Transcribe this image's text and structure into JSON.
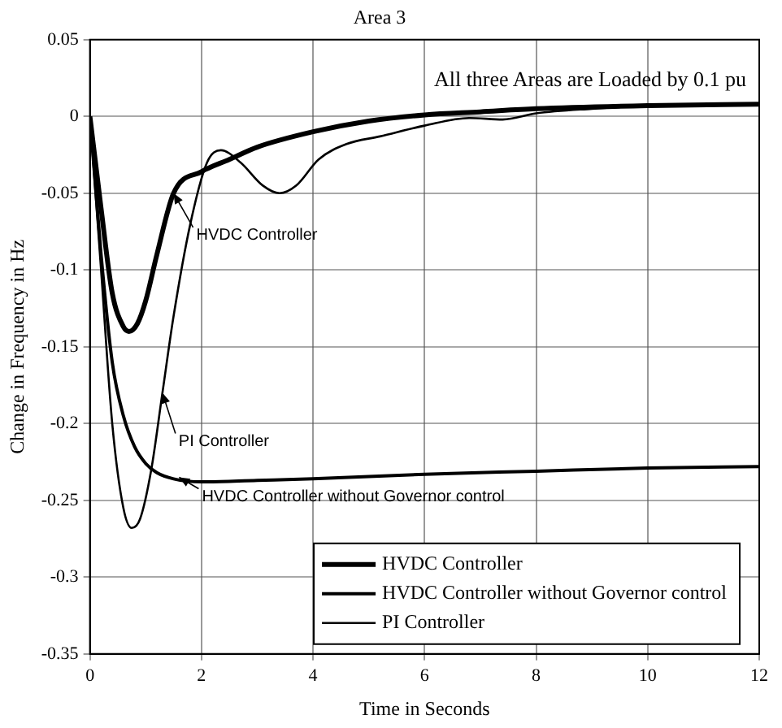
{
  "chart_data": {
    "type": "line",
    "title": "Area 3",
    "xlabel": "Time in Seconds",
    "ylabel": "Change in Frequency in Hz",
    "xlim": [
      0,
      12
    ],
    "xticks": [
      0,
      2,
      4,
      6,
      8,
      10,
      12
    ],
    "ylim": [
      -0.35,
      0.05
    ],
    "yticks": [
      0.05,
      0,
      -0.05,
      -0.1,
      -0.15,
      -0.2,
      -0.25,
      -0.3,
      -0.35
    ],
    "grid": true,
    "legend": "bottom right",
    "marker": "none",
    "line_style": "solid",
    "annotations": [
      "All three Areas are Loaded by 0.1 pu",
      {
        "text": "HVDC Controller",
        "x": 1.5,
        "y": -0.05
      },
      {
        "text": "PI Controller",
        "x": 1.3,
        "y": -0.18
      },
      {
        "text": "HVDC Controller without Governor control",
        "x": 1.6,
        "y": -0.235
      }
    ],
    "series": [
      {
        "name": "HVDC Controller",
        "color": "#000000",
        "x": [
          0,
          0.2,
          0.4,
          0.6,
          0.7,
          0.85,
          1.0,
          1.2,
          1.5,
          2,
          2.5,
          3,
          4,
          5,
          6,
          7,
          8,
          10,
          12
        ],
        "values": [
          0,
          -0.06,
          -0.115,
          -0.137,
          -0.14,
          -0.135,
          -0.12,
          -0.09,
          -0.05,
          -0.036,
          -0.028,
          -0.02,
          -0.01,
          -0.003,
          0.001,
          0.003,
          0.005,
          0.007,
          0.008
        ]
      },
      {
        "name": "HVDC Controller without Governor control",
        "color": "#000000",
        "x": [
          0,
          0.2,
          0.4,
          0.6,
          0.8,
          1.0,
          1.2,
          1.5,
          2,
          3,
          4,
          6,
          8,
          10,
          12
        ],
        "values": [
          0,
          -0.09,
          -0.16,
          -0.195,
          -0.215,
          -0.226,
          -0.232,
          -0.236,
          -0.238,
          -0.237,
          -0.236,
          -0.233,
          -0.231,
          -0.229,
          -0.228
        ]
      },
      {
        "name": "PI Controller",
        "color": "#000000",
        "x": [
          0,
          0.2,
          0.4,
          0.6,
          0.75,
          0.9,
          1.1,
          1.3,
          1.5,
          1.8,
          2.1,
          2.35,
          2.7,
          3.1,
          3.4,
          3.7,
          4.1,
          4.6,
          5.2,
          6,
          6.8,
          7.4,
          8,
          9,
          10,
          12
        ],
        "values": [
          0,
          -0.1,
          -0.2,
          -0.255,
          -0.268,
          -0.262,
          -0.23,
          -0.18,
          -0.13,
          -0.07,
          -0.03,
          -0.022,
          -0.03,
          -0.045,
          -0.05,
          -0.045,
          -0.028,
          -0.018,
          -0.013,
          -0.006,
          -0.001,
          -0.002,
          0.002,
          0.005,
          0.007,
          0.008
        ]
      }
    ]
  }
}
